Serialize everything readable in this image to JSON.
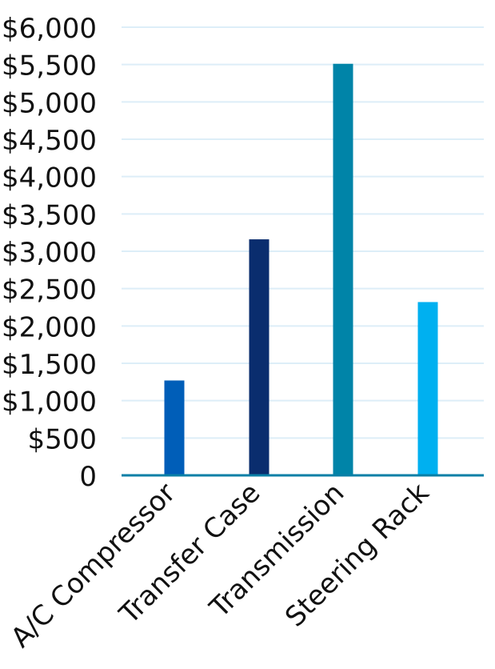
{
  "chart_data": {
    "type": "bar",
    "title": "",
    "xlabel": "",
    "ylabel": "",
    "categories": [
      "A/C Compressor",
      "Transfer Case",
      "Transmission",
      "Steering Rack"
    ],
    "values": [
      1270,
      3160,
      5510,
      2320
    ],
    "bar_colors": [
      "#005eb8",
      "#0a2d6e",
      "#0084a8",
      "#00b0f0"
    ],
    "ylim": [
      0,
      6000
    ],
    "yticks": [
      0,
      500,
      1000,
      1500,
      2000,
      2500,
      3000,
      3500,
      4000,
      4500,
      5000,
      5500,
      6000
    ],
    "ytick_labels": [
      "0",
      "$500",
      "$1,000",
      "$1,500",
      "$2,000",
      "$2,500",
      "$3,000",
      "$3,500",
      "$4,000",
      "$4,500",
      "$5,000",
      "$5,500",
      "$6,000"
    ],
    "grid": true,
    "gridline_color": "#ddeef8",
    "axis_color": "#0a7fa6",
    "legend": "none"
  }
}
